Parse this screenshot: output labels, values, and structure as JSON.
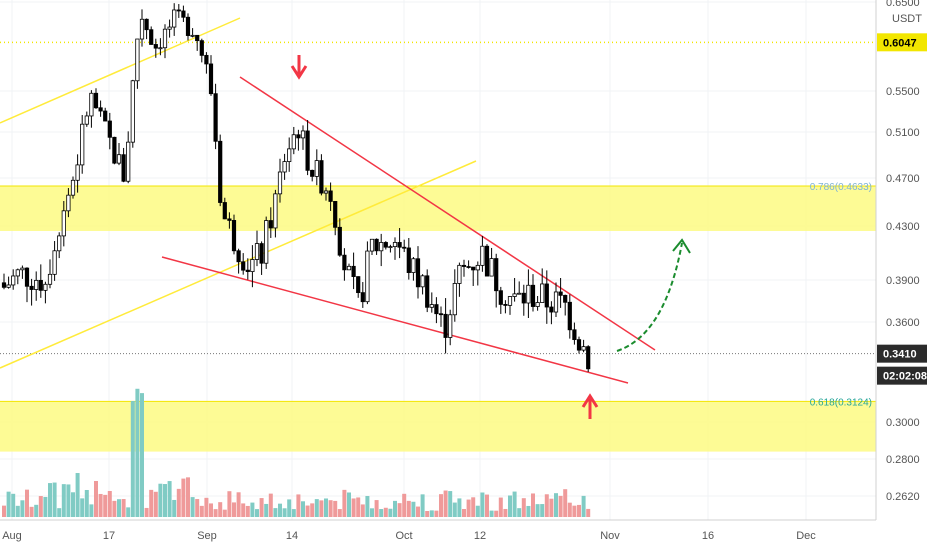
{
  "chart_data": {
    "type": "candlestick",
    "quote_currency": "USDT",
    "y_range": [
      0.248,
      0.66
    ],
    "price_ticks": [
      0.65,
      0.55,
      0.51,
      0.47,
      0.43,
      0.39,
      0.36,
      0.3,
      0.28,
      0.262
    ],
    "price_tick_labels": [
      "0.6500",
      "0.5500",
      "0.5100",
      "0.4700",
      "0.4300",
      "0.3900",
      "0.3600",
      "0.3000",
      "0.2800",
      "0.2620"
    ],
    "x_labels": [
      "Aug",
      "17",
      "Sep",
      "14",
      "Oct",
      "12",
      "Nov",
      "16",
      "Dec"
    ],
    "current_price": 0.341,
    "current_price_label": "0.3410",
    "countdown_label": "02:02:08",
    "level_price": 0.6047,
    "level_label": "0.6047",
    "fib_levels": [
      {
        "ratio_label": "0.786(0.4633)",
        "price": 0.4633,
        "color": "#7fb3d5"
      },
      {
        "ratio_label": "0.618(0.3124)",
        "price": 0.3124,
        "color": "#26a69a"
      }
    ],
    "zones": [
      {
        "low": 0.4263,
        "high": 0.4633,
        "color": "#fdfb8a"
      },
      {
        "low": 0.284,
        "high": 0.3124,
        "color": "#fdfb8a"
      }
    ],
    "up_color": "#ffffff",
    "down_color": "#000000",
    "volume_up_color": "#80cbc4",
    "volume_down_color": "#ef9a9a",
    "trendline_color": "#f23645",
    "channel_color": "#ffeb3b",
    "grid": true
  }
}
